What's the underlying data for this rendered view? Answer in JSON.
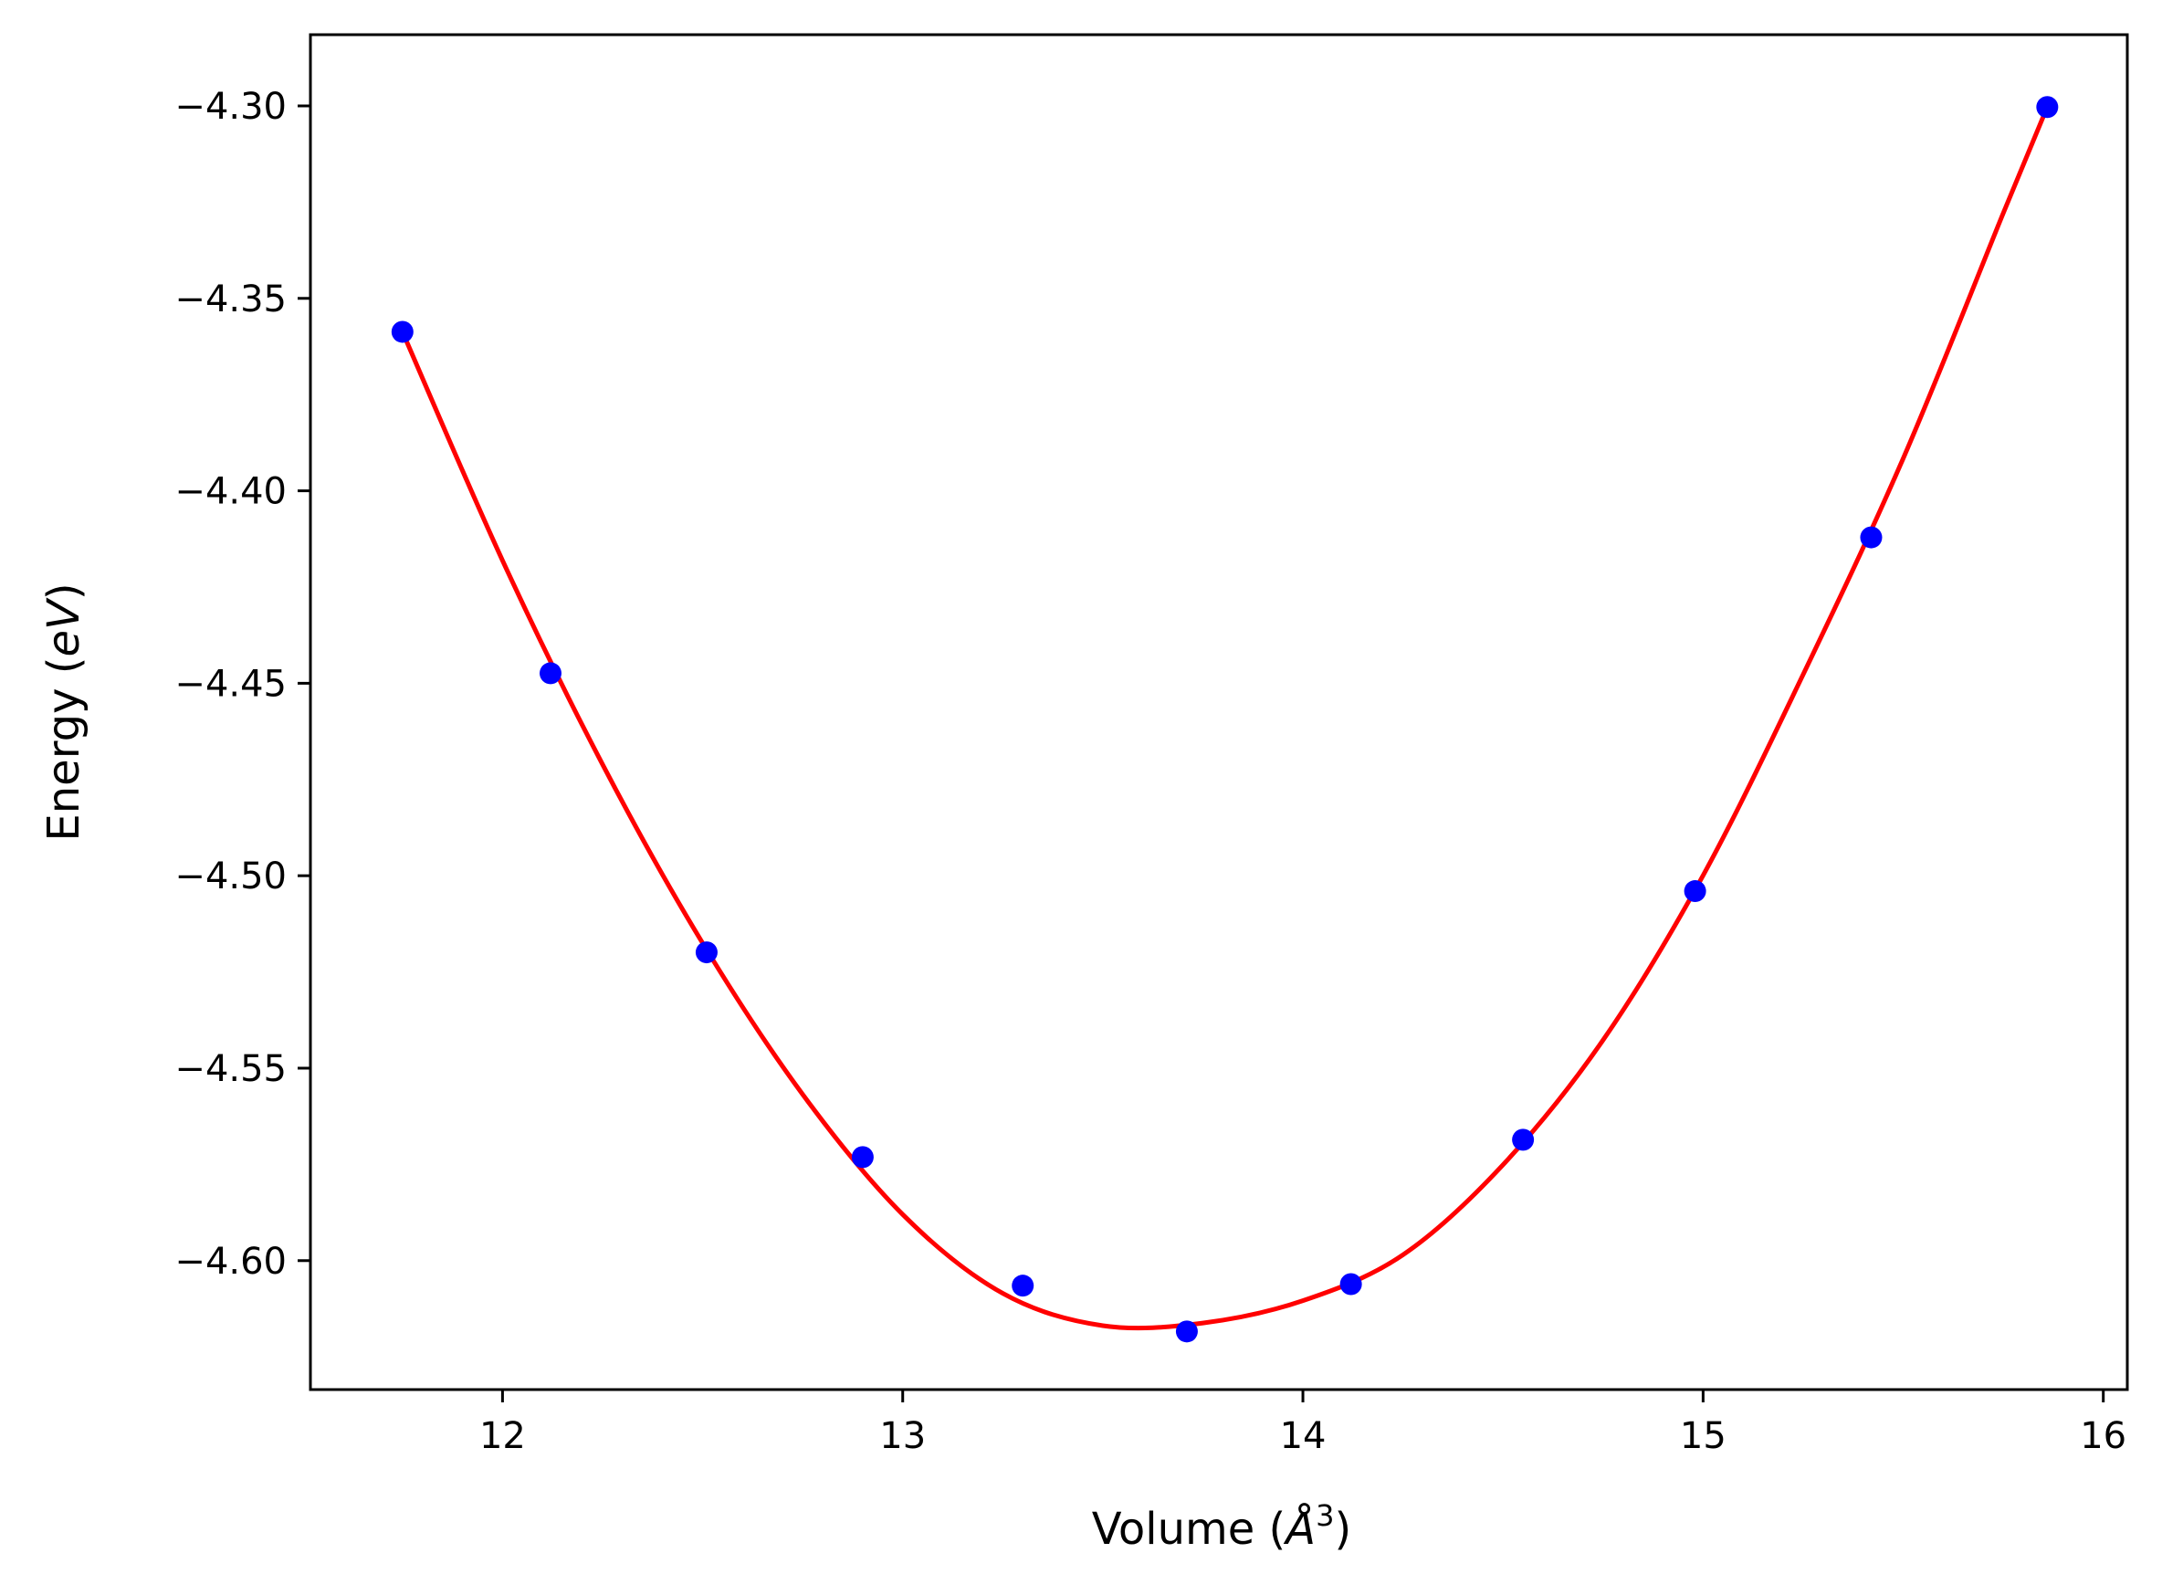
{
  "chart_data": {
    "type": "scatter",
    "title": "",
    "xlabel": "Volume (",
    "xlabel_symbol": "Å",
    "xlabel_exp": "3",
    "xlabel_end": ")",
    "ylabel": "Energy (",
    "ylabel_symbol": "eV",
    "ylabel_end": ")",
    "xlim": [
      11.52,
      16.06
    ],
    "ylim": [
      -4.6335,
      -4.2815
    ],
    "xticks": [
      12,
      13,
      14,
      15,
      16
    ],
    "xtick_labels": [
      "12",
      "13",
      "14",
      "15",
      "16"
    ],
    "yticks": [
      -4.3,
      -4.35,
      -4.4,
      -4.45,
      -4.5,
      -4.55,
      -4.6
    ],
    "ytick_labels": [
      "−4.30",
      "−4.35",
      "−4.40",
      "−4.45",
      "−4.50",
      "−4.55",
      "−4.60"
    ],
    "grid": false,
    "series": [
      {
        "kind": "points",
        "color": "#0000ff",
        "x": [
          11.75,
          12.12,
          12.51,
          12.9,
          13.3,
          13.71,
          14.12,
          14.55,
          14.98,
          15.42,
          15.86
        ],
        "y": [
          -4.3587,
          -4.4474,
          -4.5199,
          -4.5731,
          -4.6065,
          -4.6184,
          -4.6061,
          -4.5686,
          -4.504,
          -4.4121,
          -4.3003
        ]
      },
      {
        "kind": "fit-curve",
        "color": "#ff0000",
        "x": [
          11.75,
          12.0,
          12.25,
          12.5,
          12.75,
          13.0,
          13.25,
          13.5,
          13.75,
          14.0,
          14.25,
          14.5,
          14.75,
          15.0,
          15.25,
          15.5,
          15.75,
          15.86
        ],
        "y": [
          -4.3587,
          -4.4181,
          -4.4711,
          -4.5175,
          -4.5568,
          -4.588,
          -4.6085,
          -4.6169,
          -4.6162,
          -4.6104,
          -4.5985,
          -4.5751,
          -4.5427,
          -4.4999,
          -4.4477,
          -4.3916,
          -4.3279,
          -4.3003
        ]
      }
    ]
  }
}
